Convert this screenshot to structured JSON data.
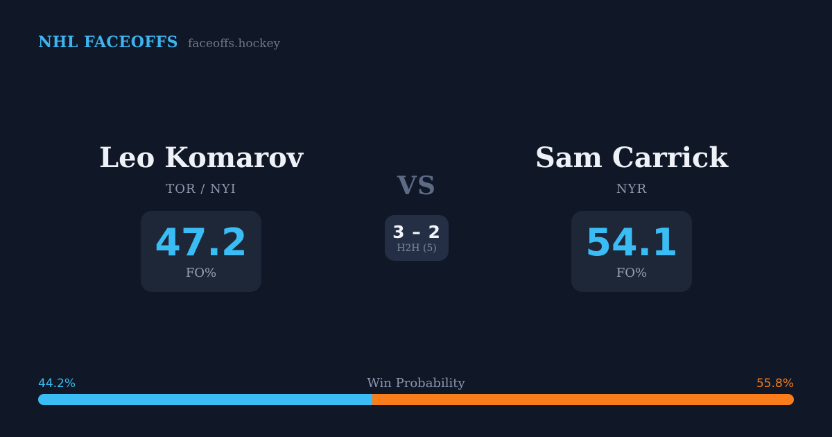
{
  "header": {
    "brand": "NHL FACEOFFS",
    "site": "faceoffs.hockey"
  },
  "matchup": {
    "left": {
      "name": "Leo Komarov",
      "teams": "TOR / NYI",
      "stat_value": "47.2",
      "stat_label": "FO%"
    },
    "right": {
      "name": "Sam Carrick",
      "teams": "NYR",
      "stat_value": "54.1",
      "stat_label": "FO%"
    },
    "versus_label": "VS",
    "h2h": {
      "score": "3 – 2",
      "label": "H2H (5)"
    }
  },
  "win_probability": {
    "label": "Win Probability",
    "left": {
      "pct_label": "44.2%",
      "value": 44.2,
      "color": "#3abdf5"
    },
    "right": {
      "pct_label": "55.8%",
      "value": 55.8,
      "color": "#f97d1a"
    }
  },
  "chart_data": {
    "type": "bar",
    "title": "Win Probability",
    "orientation": "horizontal_stacked",
    "categories": [
      "Leo Komarov",
      "Sam Carrick"
    ],
    "values": [
      44.2,
      55.8
    ],
    "colors": [
      "#3abdf5",
      "#f97d1a"
    ],
    "unit": "%",
    "xlim": [
      0,
      100
    ],
    "related_stats": {
      "faceoff_pct": {
        "Leo Komarov": 47.2,
        "Sam Carrick": 54.1
      },
      "head_to_head": {
        "score": "3 – 2",
        "games": 5
      }
    }
  },
  "colors": {
    "background": "#101726",
    "panel": "#1d2737",
    "panel_h2h": "#242f45",
    "accent_blue": "#3abdf5",
    "accent_orange": "#f97d1a",
    "text_primary": "#eef2f8",
    "text_muted": "#8d99ae"
  }
}
